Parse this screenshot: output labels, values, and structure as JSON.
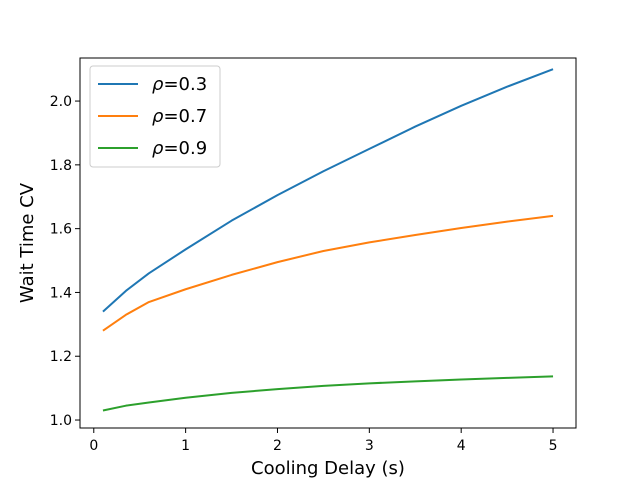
{
  "chart_data": {
    "type": "line",
    "title": "",
    "xlabel": "Cooling Delay (s)",
    "ylabel": "Wait Time CV",
    "xlim": [
      -0.15,
      5.25
    ],
    "ylim": [
      0.975,
      2.135
    ],
    "xticks": [
      0,
      1,
      2,
      3,
      4,
      5
    ],
    "xtick_labels": [
      "0",
      "1",
      "2",
      "3",
      "4",
      "5"
    ],
    "yticks": [
      1.0,
      1.2,
      1.4,
      1.6,
      1.8,
      2.0
    ],
    "ytick_labels": [
      "1.0",
      "1.2",
      "1.4",
      "1.6",
      "1.8",
      "2.0"
    ],
    "grid": false,
    "legend_position": "top-left",
    "x": [
      0.1,
      0.35,
      0.6,
      1.0,
      1.5,
      2.0,
      2.5,
      3.0,
      3.5,
      4.0,
      4.5,
      5.0
    ],
    "series": [
      {
        "name": "ρ=0.3",
        "name_symbol": "ρ",
        "name_value": "=0.3",
        "color": "#1f77b4",
        "values": [
          1.34,
          1.405,
          1.46,
          1.535,
          1.625,
          1.705,
          1.78,
          1.85,
          1.92,
          1.985,
          2.045,
          2.1
        ]
      },
      {
        "name": "ρ=0.7",
        "name_symbol": "ρ",
        "name_value": "=0.7",
        "color": "#ff7f0e",
        "values": [
          1.28,
          1.33,
          1.37,
          1.41,
          1.455,
          1.495,
          1.53,
          1.557,
          1.58,
          1.602,
          1.622,
          1.64
        ]
      },
      {
        "name": "ρ=0.9",
        "name_symbol": "ρ",
        "name_value": "=0.9",
        "color": "#2ca02c",
        "values": [
          1.03,
          1.045,
          1.055,
          1.07,
          1.085,
          1.097,
          1.107,
          1.115,
          1.121,
          1.127,
          1.132,
          1.137
        ]
      }
    ]
  }
}
